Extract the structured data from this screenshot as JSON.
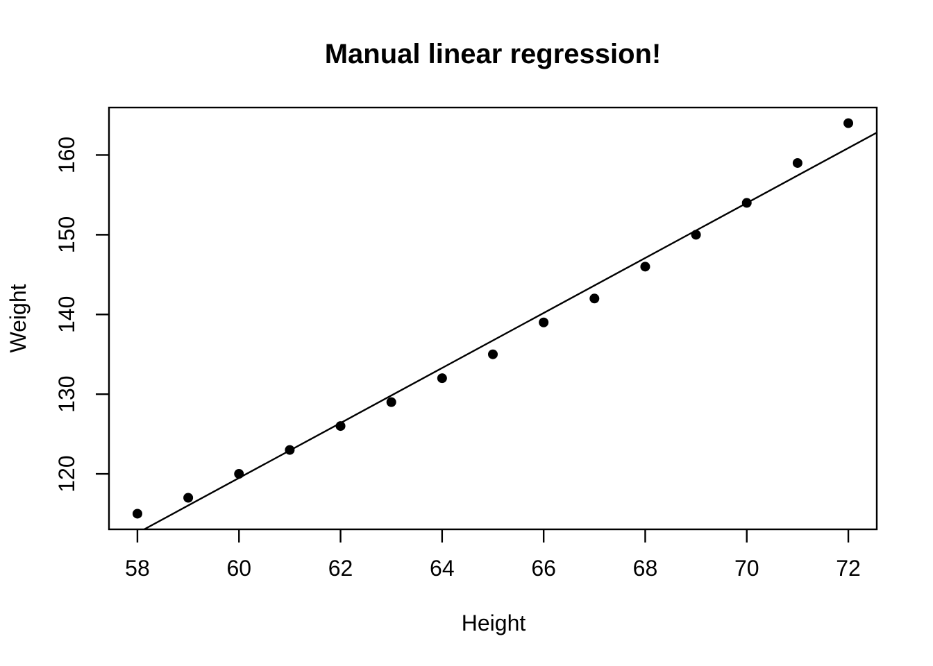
{
  "chart_data": {
    "type": "scatter",
    "title": "Manual linear regression!",
    "xlabel": "Height",
    "ylabel": "Weight",
    "x": [
      58,
      59,
      60,
      61,
      62,
      63,
      64,
      65,
      66,
      67,
      68,
      69,
      70,
      71,
      72
    ],
    "y": [
      115,
      117,
      120,
      123,
      126,
      129,
      132,
      135,
      139,
      142,
      146,
      150,
      154,
      159,
      164
    ],
    "x_ticks": [
      58,
      60,
      62,
      64,
      66,
      68,
      70,
      72
    ],
    "y_ticks": [
      120,
      130,
      140,
      150,
      160
    ],
    "xlim": [
      57.44,
      72.56
    ],
    "ylim": [
      113.04,
      165.96
    ],
    "regression_line": {
      "intercept": -87.517,
      "slope": 3.45
    },
    "marker": "filled-circle",
    "grid": false,
    "legend": null,
    "point_color": "#000000",
    "line_color": "#000000",
    "axis_color": "#000000",
    "background": "#ffffff"
  }
}
